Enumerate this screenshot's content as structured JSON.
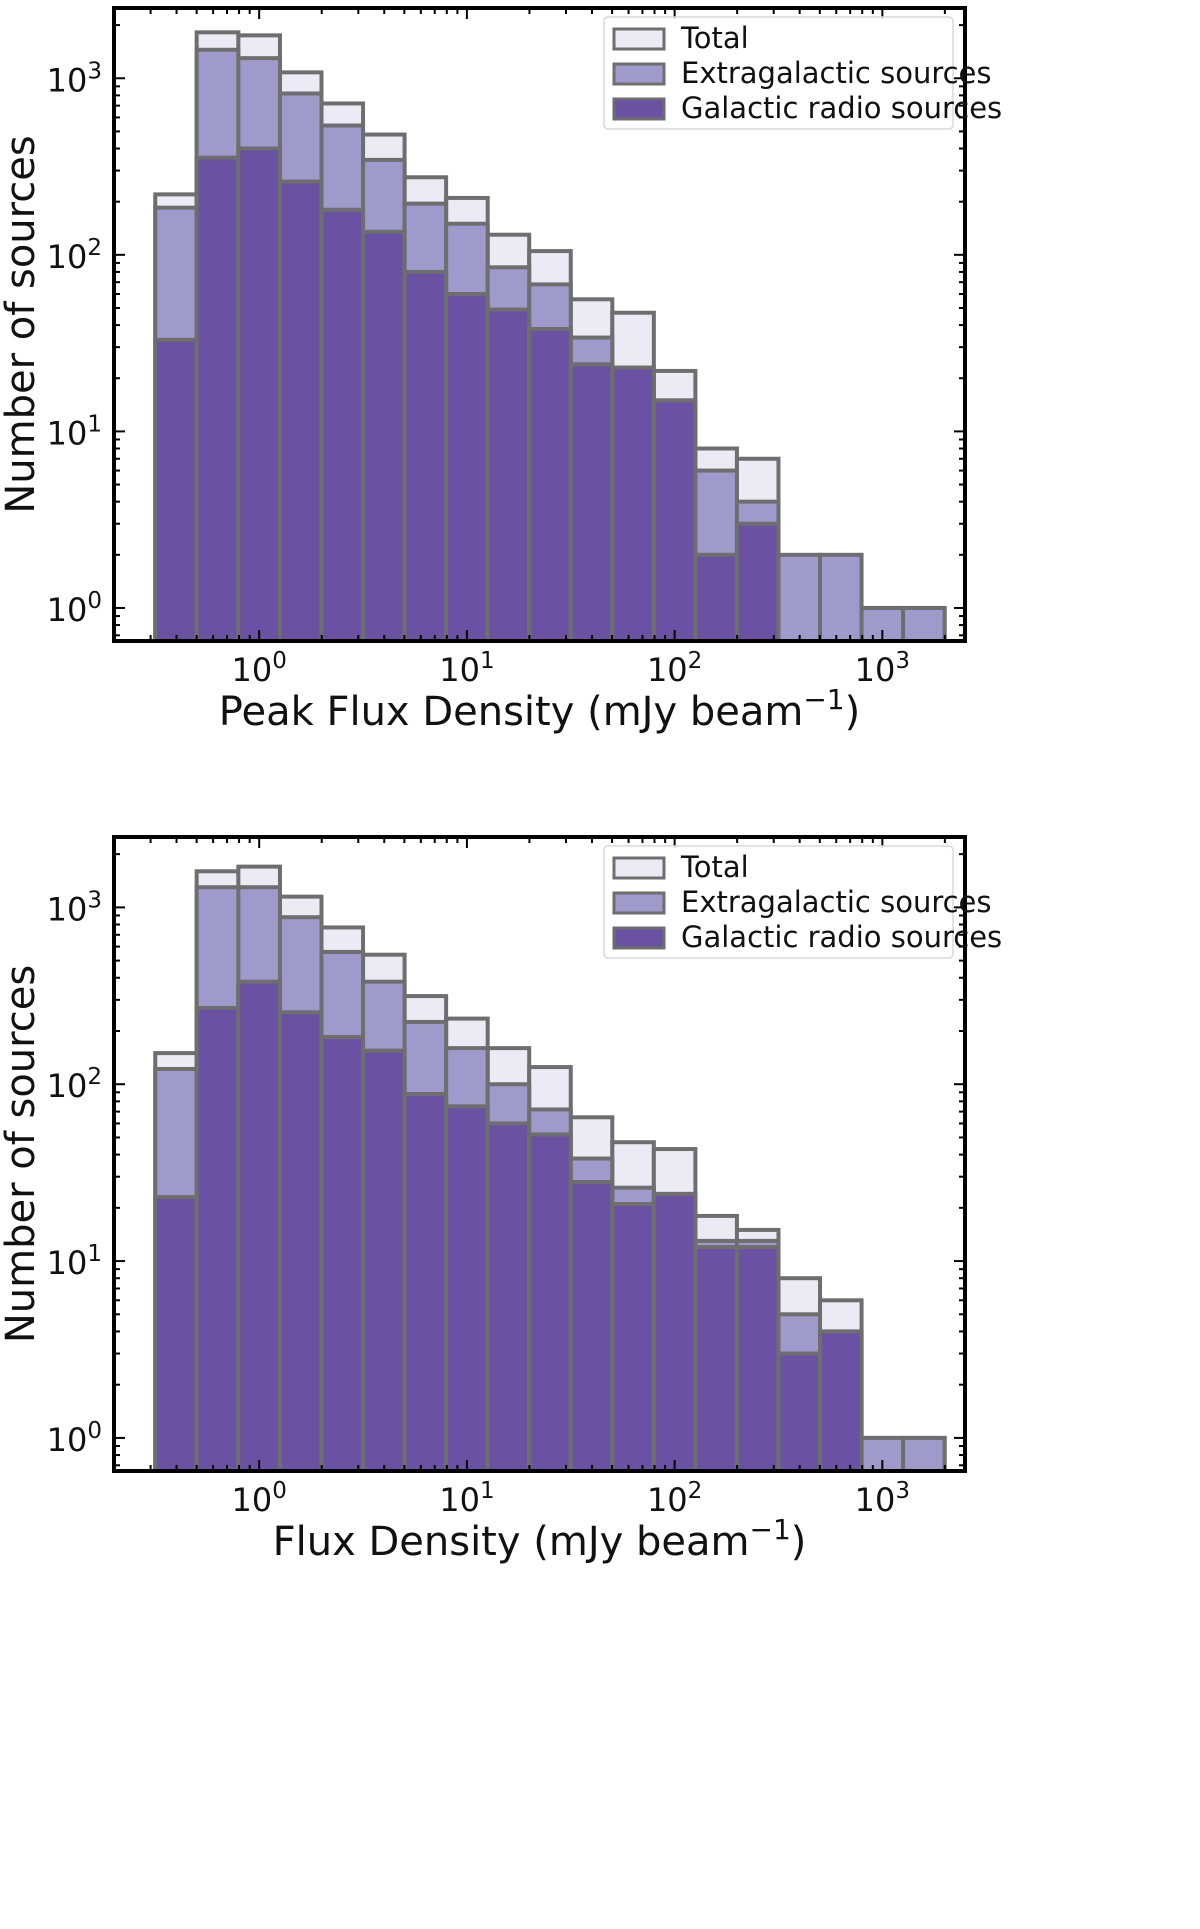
{
  "chart_data": [
    {
      "type": "bar",
      "subtype": "stacked-log-histogram",
      "xlabel": "Peak Flux Density",
      "xlabel_unit": "mJy beam",
      "xlabel_unit_exp": "−1",
      "ylabel": "Number of sources",
      "xscale": "log",
      "yscale": "log",
      "xlim": [
        0.2,
        2500
      ],
      "ylim": [
        0.65,
        2500
      ],
      "x_ticks": [
        {
          "value": 1,
          "base": "10",
          "exp": "0"
        },
        {
          "value": 10,
          "base": "10",
          "exp": "1"
        },
        {
          "value": 100,
          "base": "10",
          "exp": "2"
        },
        {
          "value": 1000,
          "base": "10",
          "exp": "3"
        }
      ],
      "y_ticks": [
        {
          "value": 1,
          "base": "10",
          "exp": "0"
        },
        {
          "value": 10,
          "base": "10",
          "exp": "1"
        },
        {
          "value": 100,
          "base": "10",
          "exp": "2"
        },
        {
          "value": 1000,
          "base": "10",
          "exp": "3"
        }
      ],
      "bin_edges": [
        0.316,
        0.5,
        0.794,
        1.259,
        1.995,
        3.162,
        5.012,
        7.943,
        12.59,
        19.95,
        31.62,
        50.12,
        79.43,
        125.9,
        199.5,
        316.2,
        501.2,
        794.3,
        1259,
        1995
      ],
      "legend_position": "top-right",
      "series": [
        {
          "name": "Total",
          "color": "#ecebf5",
          "values": [
            220,
            1820,
            1750,
            1080,
            720,
            480,
            275,
            210,
            130,
            105,
            56,
            47,
            22,
            8,
            7,
            null,
            null,
            1,
            1
          ]
        },
        {
          "name": "Extragalactic sources",
          "color": "#9e9acc",
          "values": [
            185,
            1450,
            1300,
            820,
            540,
            345,
            195,
            150,
            85,
            68,
            34,
            null,
            null,
            6,
            4,
            2,
            2,
            1,
            1
          ]
        },
        {
          "name": "Galactic radio sources",
          "color": "#6a51a3",
          "values": [
            33,
            355,
            400,
            260,
            180,
            135,
            80,
            60,
            49,
            38,
            24,
            23,
            15,
            2,
            3,
            null,
            null,
            null,
            null
          ]
        }
      ]
    },
    {
      "type": "bar",
      "subtype": "stacked-log-histogram",
      "xlabel": "Flux Density",
      "xlabel_unit": "mJy beam",
      "xlabel_unit_exp": "−1",
      "ylabel": "Number of sources",
      "xscale": "log",
      "yscale": "log",
      "xlim": [
        0.2,
        2500
      ],
      "ylim": [
        0.65,
        2500
      ],
      "x_ticks": [
        {
          "value": 1,
          "base": "10",
          "exp": "0"
        },
        {
          "value": 10,
          "base": "10",
          "exp": "1"
        },
        {
          "value": 100,
          "base": "10",
          "exp": "2"
        },
        {
          "value": 1000,
          "base": "10",
          "exp": "3"
        }
      ],
      "y_ticks": [
        {
          "value": 1,
          "base": "10",
          "exp": "0"
        },
        {
          "value": 10,
          "base": "10",
          "exp": "1"
        },
        {
          "value": 100,
          "base": "10",
          "exp": "2"
        },
        {
          "value": 1000,
          "base": "10",
          "exp": "3"
        }
      ],
      "bin_edges": [
        0.316,
        0.5,
        0.794,
        1.259,
        1.995,
        3.162,
        5.012,
        7.943,
        12.59,
        19.95,
        31.62,
        50.12,
        79.43,
        125.9,
        199.5,
        316.2,
        501.2,
        794.3,
        1259,
        1995
      ],
      "legend_position": "top-right",
      "series": [
        {
          "name": "Total",
          "color": "#ecebf5",
          "values": [
            150,
            1600,
            1700,
            1150,
            770,
            540,
            315,
            235,
            160,
            125,
            65,
            47,
            43,
            18,
            15,
            8,
            6,
            1,
            1
          ]
        },
        {
          "name": "Extragalactic sources",
          "color": "#9e9acc",
          "values": [
            122,
            1300,
            1300,
            880,
            560,
            380,
            225,
            160,
            100,
            72,
            38,
            26,
            null,
            13,
            13,
            5,
            4,
            1,
            1
          ]
        },
        {
          "name": "Galactic radio sources",
          "color": "#6a51a3",
          "values": [
            23,
            270,
            380,
            255,
            185,
            155,
            88,
            75,
            60,
            52,
            28,
            21,
            24,
            12,
            12,
            3,
            4,
            null,
            null
          ]
        }
      ]
    }
  ]
}
